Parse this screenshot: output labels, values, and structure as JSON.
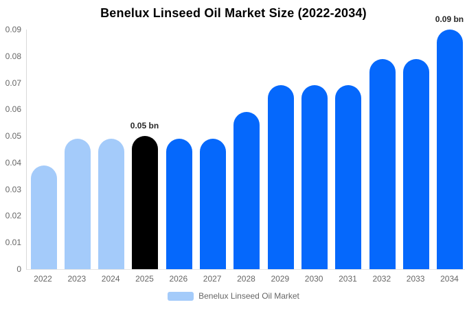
{
  "chart_data": {
    "type": "bar",
    "title": "Benelux Linseed Oil Market Size (2022-2034)",
    "categories": [
      "2022",
      "2023",
      "2024",
      "2025",
      "2026",
      "2027",
      "2028",
      "2029",
      "2030",
      "2031",
      "2032",
      "2033",
      "2034"
    ],
    "values": [
      0.039,
      0.049,
      0.049,
      0.05,
      0.049,
      0.049,
      0.059,
      0.069,
      0.069,
      0.069,
      0.079,
      0.079,
      0.09
    ],
    "unit": "bn",
    "xlabel": "",
    "ylabel": "",
    "ylim": [
      0,
      0.09
    ],
    "ytick_labels": [
      "0",
      "0.01",
      "0.02",
      "0.03",
      "0.04",
      "0.05",
      "0.06",
      "0.07",
      "0.08",
      "0.09"
    ],
    "grid": false,
    "legend_position": "bottom",
    "bar_colors": [
      "#a4cbfa",
      "#a4cbfa",
      "#a4cbfa",
      "#000000",
      "#0568fc",
      "#0568fc",
      "#0568fc",
      "#0568fc",
      "#0568fc",
      "#0568fc",
      "#0568fc",
      "#0568fc",
      "#0568fc"
    ],
    "annotations": [
      {
        "category": "2025",
        "text": "0.05 bn"
      },
      {
        "category": "2034",
        "text": "0.09 bn"
      }
    ],
    "legend": [
      {
        "label": "Benelux Linseed Oil Market",
        "color": "#a4cbfa"
      }
    ]
  },
  "colors": {
    "past_bar": "#a4cbfa",
    "highlight_bar": "#000000",
    "forecast_bar": "#0568fc",
    "axis_line": "#d9d9d9",
    "baseline": "#e4e4e4",
    "tick_text": "#666666",
    "annotation_text": "#262626",
    "title_text": "#000000",
    "background": "#ffffff"
  }
}
